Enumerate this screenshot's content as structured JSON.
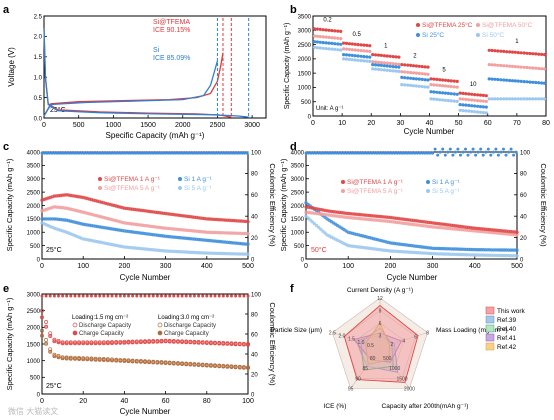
{
  "panels": {
    "a": {
      "label": "a",
      "xlabel": "Specific Capacity (mAh g⁻¹)",
      "ylabel": "Voltage (V)",
      "xlim": [
        0,
        3200
      ],
      "ylim": [
        0,
        2.5
      ],
      "xticks": [
        "0",
        "500",
        "1000",
        "1500",
        "2000",
        "2500",
        "3000"
      ],
      "yticks": [
        "0.0",
        "0.5",
        "1.0",
        "1.5",
        "2.0",
        "2.5"
      ],
      "temp": "25°C",
      "legend1_name": "Si@TFEMA",
      "legend1_ice": "ICE 90.15%",
      "legend2_name": "Si",
      "legend2_ice": "ICE 85.09%",
      "colors": {
        "si_tfema": "#e33a3a",
        "si": "#2f7fd1"
      }
    },
    "b": {
      "label": "b",
      "xlabel": "Cycle Number",
      "ylabel": "Specific Capacity (mAh g⁻¹)",
      "unit_note": "Unit: A g⁻¹",
      "xticks": [
        "0",
        "10",
        "20",
        "30",
        "40",
        "50",
        "60",
        "70",
        "80"
      ],
      "yticks": [
        "0",
        "500",
        "1000",
        "1500",
        "2000",
        "2500",
        "3000",
        "3500"
      ],
      "rate_labels": [
        "0.2",
        "0.5",
        "1",
        "2",
        "5",
        "10",
        "1"
      ],
      "legend": [
        "Si@TFEMA 25°C",
        "Si@TFEMA 50°C",
        "Si 25°C",
        "Si 50°C"
      ]
    },
    "c": {
      "label": "c",
      "xlabel": "Cycle Number",
      "ylabel": "Specific Capacity (mAh g⁻¹)",
      "y2label": "Coulombic Efficiency (%)",
      "xticks": [
        "0",
        "100",
        "200",
        "300",
        "400",
        "500"
      ],
      "yticks": [
        "0",
        "500",
        "1000",
        "1500",
        "2000",
        "2500",
        "3000",
        "3500",
        "4000"
      ],
      "y2ticks": [
        "0",
        "20",
        "40",
        "60",
        "80",
        "100"
      ],
      "temp": "25°C",
      "legend": [
        "Si@TFEMA 1 A g⁻¹",
        "Si@TFEMA 5 A g⁻¹",
        "Si 1 A g⁻¹",
        "Si 5 A g⁻¹"
      ]
    },
    "d": {
      "label": "d",
      "xlabel": "Cycle Number",
      "ylabel": "Specific Capacity (mAh g⁻¹)",
      "y2label": "Coulombic Efficiency (%)",
      "xticks": [
        "0",
        "100",
        "200",
        "300",
        "400",
        "500"
      ],
      "yticks": [
        "0",
        "500",
        "1000",
        "1500",
        "2000",
        "2500",
        "3000",
        "3500",
        "4000"
      ],
      "y2ticks": [
        "0",
        "20",
        "40",
        "60",
        "80",
        "100"
      ],
      "temp": "50°C",
      "legend": [
        "Si@TFEMA 1 A g⁻¹",
        "Si@TFEMA 5 A g⁻¹",
        "Si 1 A g⁻¹",
        "Si 5 A g⁻¹"
      ]
    },
    "e": {
      "label": "e",
      "xlabel": "Cycle Number",
      "ylabel": "Specific Capacity (mAh g⁻¹)",
      "y2label": "Coulombic Efficiency (%)",
      "xticks": [
        "0",
        "20",
        "40",
        "60",
        "80",
        "100"
      ],
      "yticks": [
        "0",
        "500",
        "1000",
        "1500",
        "2000",
        "2500",
        "3000"
      ],
      "y2ticks": [
        "0",
        "20",
        "40",
        "60",
        "80",
        "100"
      ],
      "temp": "25°C",
      "loading1": "Loading:1.5 mg cm⁻²",
      "loading2": "Loading:3.0 mg cm⁻²",
      "legend": [
        "Discharge Capacity",
        "Charge Capacity",
        "Discharge Capacity",
        "Charge Capacity"
      ]
    },
    "f": {
      "label": "f",
      "axes": [
        "Current Density (A g⁻¹)",
        "Mass Loading (mg cm⁻²)",
        "Capacity after 200th(mAh g⁻¹)",
        "ICE (%)",
        "Particle Size (μm)"
      ],
      "legend": [
        "This work",
        "Ref.39",
        "Ref.40",
        "Ref.41",
        "Ref.42"
      ],
      "legend_colors": [
        "#f3a3a3",
        "#a7c7e7",
        "#b7e4c7",
        "#c9a7e0",
        "#f7d08a"
      ]
    }
  },
  "watermark": "微信 大猫读文",
  "chart_data": [
    {
      "type": "line",
      "panel": "a",
      "xlabel": "Specific Capacity (mAh g⁻¹)",
      "ylabel": "Voltage (V)",
      "xlim": [
        0,
        3200
      ],
      "ylim": [
        0,
        2.5
      ],
      "series": [
        {
          "name": "Si@TFEMA",
          "ice": "ICE 90.15%",
          "discharge": [
            [
              0,
              2.2
            ],
            [
              20,
              1.0
            ],
            [
              60,
              0.35
            ],
            [
              200,
              0.2
            ],
            [
              800,
              0.15
            ],
            [
              1500,
              0.12
            ],
            [
              2200,
              0.1
            ],
            [
              2550,
              0.07
            ],
            [
              2700,
              0.02
            ]
          ],
          "charge": [
            [
              0,
              0.05
            ],
            [
              100,
              0.35
            ],
            [
              500,
              0.4
            ],
            [
              1200,
              0.43
            ],
            [
              1800,
              0.45
            ],
            [
              2200,
              0.5
            ],
            [
              2400,
              0.6
            ],
            [
              2500,
              0.9
            ],
            [
              2550,
              1.3
            ],
            [
              2580,
              1.6
            ]
          ]
        },
        {
          "name": "Si",
          "ice": "ICE 85.09%",
          "discharge": [
            [
              0,
              2.2
            ],
            [
              20,
              1.0
            ],
            [
              60,
              0.33
            ],
            [
              200,
              0.18
            ],
            [
              800,
              0.13
            ],
            [
              1600,
              0.1
            ],
            [
              2400,
              0.08
            ],
            [
              2800,
              0.05
            ],
            [
              2950,
              0.02
            ]
          ],
          "charge": [
            [
              0,
              0.05
            ],
            [
              100,
              0.33
            ],
            [
              600,
              0.38
            ],
            [
              1400,
              0.42
            ],
            [
              2000,
              0.45
            ],
            [
              2300,
              0.55
            ],
            [
              2400,
              0.8
            ],
            [
              2450,
              1.1
            ],
            [
              2500,
              1.4
            ]
          ]
        }
      ],
      "markers": [
        2580,
        2700,
        2500,
        2950
      ]
    },
    {
      "type": "scatter",
      "panel": "b",
      "xlabel": "Cycle Number",
      "ylabel": "Specific Capacity (mAh g⁻¹)",
      "xlim": [
        0,
        80
      ],
      "ylim": [
        0,
        3500
      ],
      "rates": [
        [
          "0.2",
          5
        ],
        [
          "0.5",
          15
        ],
        [
          "1",
          25
        ],
        [
          "2",
          35
        ],
        [
          "5",
          45
        ],
        [
          "10",
          55
        ],
        [
          "1",
          70
        ]
      ],
      "series": [
        {
          "name": "Si@TFEMA 25°C",
          "steps": [
            3050,
            2550,
            2150,
            1800,
            1300,
            800,
            2300
          ]
        },
        {
          "name": "Si@TFEMA 50°C",
          "steps": [
            2800,
            2350,
            1900,
            1550,
            1100,
            600,
            1800
          ]
        },
        {
          "name": "Si 25°C",
          "steps": [
            2600,
            2150,
            1800,
            1350,
            850,
            400,
            1300
          ]
        },
        {
          "name": "Si 50°C",
          "steps": [
            2400,
            2000,
            1650,
            1100,
            600,
            200,
            600
          ]
        }
      ]
    },
    {
      "type": "scatter",
      "panel": "c",
      "xlabel": "Cycle Number",
      "ylabel": "Specific Capacity (mAh g⁻¹)",
      "y2label": "Coulombic Efficiency (%)",
      "xlim": [
        0,
        500
      ],
      "ylim": [
        0,
        4000
      ],
      "y2lim": [
        0,
        100
      ],
      "series": [
        {
          "name": "Si@TFEMA 1 A g⁻¹",
          "points": [
            [
              0,
              2200
            ],
            [
              30,
              2350
            ],
            [
              60,
              2400
            ],
            [
              100,
              2300
            ],
            [
              200,
              1900
            ],
            [
              300,
              1700
            ],
            [
              400,
              1500
            ],
            [
              500,
              1400
            ]
          ]
        },
        {
          "name": "Si@TFEMA 5 A g⁻¹",
          "points": [
            [
              0,
              1800
            ],
            [
              30,
              1950
            ],
            [
              60,
              1900
            ],
            [
              100,
              1750
            ],
            [
              200,
              1350
            ],
            [
              300,
              1150
            ],
            [
              400,
              1000
            ],
            [
              500,
              950
            ]
          ]
        },
        {
          "name": "Si 1 A g⁻¹",
          "points": [
            [
              0,
              1500
            ],
            [
              30,
              1500
            ],
            [
              60,
              1450
            ],
            [
              100,
              1300
            ],
            [
              200,
              1050
            ],
            [
              300,
              850
            ],
            [
              400,
              700
            ],
            [
              500,
              550
            ]
          ]
        },
        {
          "name": "Si 5 A g⁻¹",
          "points": [
            [
              0,
              1350
            ],
            [
              30,
              1150
            ],
            [
              60,
              1000
            ],
            [
              100,
              750
            ],
            [
              200,
              450
            ],
            [
              300,
              300
            ],
            [
              400,
              220
            ],
            [
              500,
              180
            ]
          ]
        }
      ],
      "ce": 99
    },
    {
      "type": "scatter",
      "panel": "d",
      "xlabel": "Cycle Number",
      "ylabel": "Specific Capacity (mAh g⁻¹)",
      "y2label": "Coulombic Efficiency (%)",
      "xlim": [
        0,
        500
      ],
      "ylim": [
        0,
        4000
      ],
      "y2lim": [
        0,
        100
      ],
      "series": [
        {
          "name": "Si@TFEMA 1 A g⁻¹",
          "points": [
            [
              0,
              1950
            ],
            [
              50,
              1800
            ],
            [
              100,
              1700
            ],
            [
              200,
              1550
            ],
            [
              300,
              1350
            ],
            [
              400,
              1150
            ],
            [
              500,
              1000
            ]
          ]
        },
        {
          "name": "Si@TFEMA 5 A g⁻¹",
          "points": [
            [
              0,
              1750
            ],
            [
              50,
              1650
            ],
            [
              100,
              1550
            ],
            [
              200,
              1400
            ],
            [
              300,
              1200
            ],
            [
              400,
              1050
            ],
            [
              500,
              900
            ]
          ]
        },
        {
          "name": "Si 1 A g⁻¹",
          "points": [
            [
              0,
              2100
            ],
            [
              50,
              1500
            ],
            [
              100,
              1000
            ],
            [
              200,
              600
            ],
            [
              300,
              400
            ],
            [
              400,
              350
            ],
            [
              500,
              330
            ]
          ]
        },
        {
          "name": "Si 5 A g⁻¹",
          "points": [
            [
              0,
              1600
            ],
            [
              50,
              900
            ],
            [
              100,
              500
            ],
            [
              200,
              300
            ],
            [
              300,
              200
            ],
            [
              400,
              150
            ],
            [
              500,
              120
            ]
          ]
        }
      ],
      "ce": 99
    },
    {
      "type": "scatter",
      "panel": "e",
      "xlabel": "Cycle Number",
      "ylabel": "Specific Capacity (mAh g⁻¹)",
      "y2label": "Coulombic Efficiency (%)",
      "xlim": [
        0,
        100
      ],
      "ylim": [
        0,
        3000
      ],
      "y2lim": [
        0,
        100
      ],
      "series": [
        {
          "name": "Loading:1.5 mg cm⁻² Discharge Capacity",
          "points": [
            [
              0,
              2500
            ],
            [
              5,
              1650
            ],
            [
              10,
              1550
            ],
            [
              30,
              1550
            ],
            [
              60,
              1600
            ],
            [
              100,
              1500
            ]
          ]
        },
        {
          "name": "Loading:1.5 mg cm⁻² Charge Capacity",
          "points": [
            [
              0,
              2300
            ],
            [
              5,
              1600
            ],
            [
              10,
              1520
            ],
            [
              30,
              1520
            ],
            [
              60,
              1580
            ],
            [
              100,
              1480
            ]
          ]
        },
        {
          "name": "Loading:3.0 mg cm⁻² Discharge Capacity",
          "points": [
            [
              0,
              1900
            ],
            [
              5,
              1200
            ],
            [
              10,
              1100
            ],
            [
              30,
              1050
            ],
            [
              60,
              950
            ],
            [
              100,
              800
            ]
          ]
        },
        {
          "name": "Loading:3.0 mg cm⁻² Charge Capacity",
          "points": [
            [
              0,
              1750
            ],
            [
              5,
              1150
            ],
            [
              10,
              1070
            ],
            [
              30,
              1020
            ],
            [
              60,
              930
            ],
            [
              100,
              780
            ]
          ]
        }
      ],
      "ce": 98
    },
    {
      "type": "radar",
      "panel": "f",
      "axes": [
        "Current Density (A g⁻¹)",
        "Mass Loading (mg cm⁻²)",
        "Capacity after 200th(mAh g⁻¹)",
        "ICE (%)",
        "Particle Size (μm)"
      ],
      "axis_ticks": [
        [
          "3",
          "6",
          "9",
          "12"
        ],
        [
          "2",
          "4",
          "6",
          "8"
        ],
        [
          "500",
          "1000",
          "1500",
          "2000"
        ],
        [
          "80",
          "85",
          "90",
          "95"
        ],
        [
          "0.5",
          "1.0",
          "1.5",
          "2.0",
          "2.5"
        ]
      ],
      "series": [
        {
          "name": "This work",
          "values": [
            0.85,
            0.8,
            0.85,
            0.78,
            0.75
          ]
        },
        {
          "name": "Ref.39",
          "values": [
            0.25,
            0.3,
            0.6,
            0.45,
            0.5
          ]
        },
        {
          "name": "Ref.40",
          "values": [
            0.4,
            0.25,
            0.45,
            0.55,
            0.4
          ]
        },
        {
          "name": "Ref.41",
          "values": [
            0.3,
            0.45,
            0.35,
            0.3,
            0.55
          ]
        },
        {
          "name": "Ref.42",
          "values": [
            0.5,
            0.2,
            0.3,
            0.4,
            0.3
          ]
        }
      ]
    }
  ]
}
